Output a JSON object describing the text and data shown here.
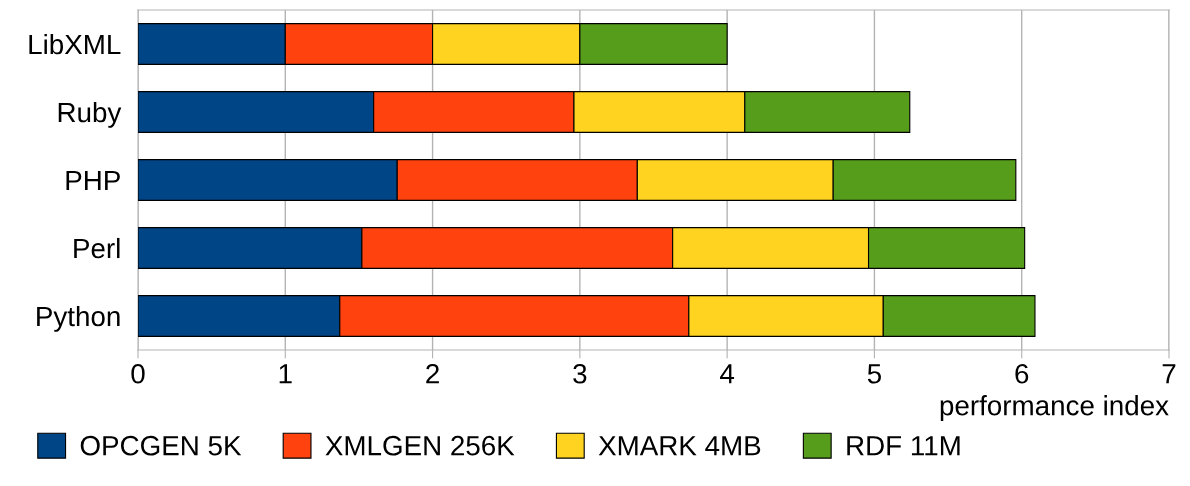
{
  "chart_data": {
    "type": "bar",
    "orientation": "horizontal",
    "stacked": true,
    "xlabel": "performance index",
    "categories": [
      "LibXML",
      "Ruby",
      "PHP",
      "Perl",
      "Python"
    ],
    "series": [
      {
        "name": "OPCGEN 5K",
        "color": "#004586",
        "values": [
          1.0,
          1.6,
          1.76,
          1.52,
          1.37
        ]
      },
      {
        "name": "XMLGEN 256K",
        "color": "#ff420e",
        "values": [
          1.0,
          1.36,
          1.63,
          2.11,
          2.37
        ]
      },
      {
        "name": "XMARK 4MB",
        "color": "#ffd320",
        "values": [
          1.0,
          1.16,
          1.33,
          1.33,
          1.32
        ]
      },
      {
        "name": "RDF 11M",
        "color": "#579d1c",
        "values": [
          1.0,
          1.12,
          1.24,
          1.06,
          1.03
        ]
      }
    ],
    "xlim": [
      0,
      7
    ],
    "xticks": [
      0,
      1,
      2,
      3,
      4,
      5,
      6,
      7
    ],
    "grid": "x",
    "legend": "bottom"
  }
}
